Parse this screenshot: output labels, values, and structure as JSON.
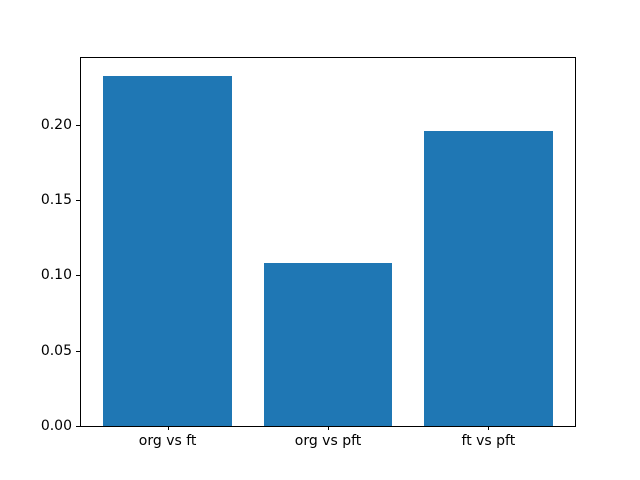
{
  "chart_data": {
    "type": "bar",
    "title": "",
    "xlabel": "",
    "ylabel": "",
    "categories": [
      "org vs ft",
      "org vs pft",
      "ft vs pft"
    ],
    "values": [
      0.232,
      0.108,
      0.196
    ],
    "bar_color": "#1f77b4",
    "bar_width": 0.8,
    "xlim": [
      -0.54,
      2.54
    ],
    "ylim": [
      0,
      0.2442
    ],
    "yticks": [
      0,
      0.05,
      0.1,
      0.15,
      0.2
    ],
    "ytick_labels": [
      "0.00",
      "0.05",
      "0.10",
      "0.15",
      "0.20"
    ],
    "grid": false,
    "legend": null
  }
}
